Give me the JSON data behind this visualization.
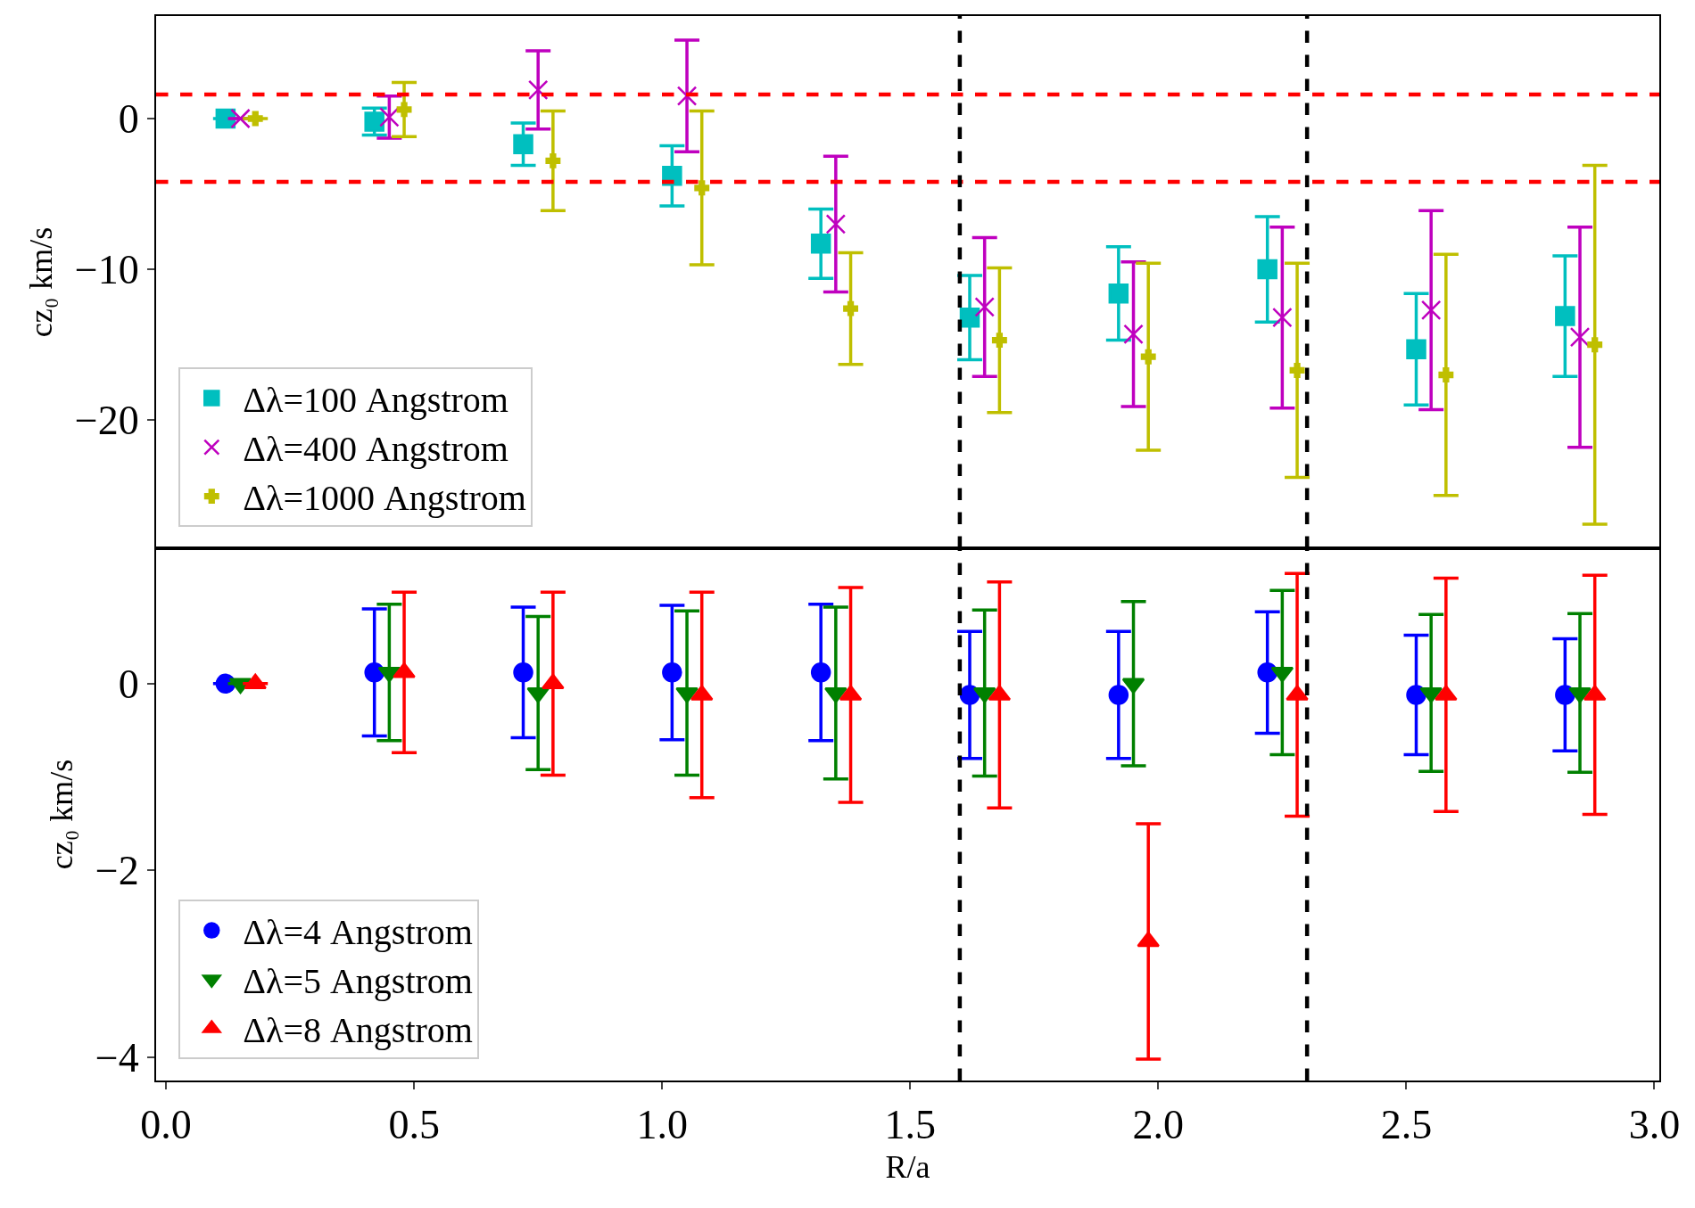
{
  "chart_data": [
    {
      "type": "scatter",
      "ylabel": "cz₀ km/s",
      "xlim": [
        -0.02,
        3.01
      ],
      "ylim": [
        -28.5,
        6.8
      ],
      "yticks": [
        0,
        {
          "value": -10,
          "label": "−10"
        },
        {
          "value": -20,
          "label": "−20"
        }
      ],
      "tick_labels": "y",
      "legend": "bottom left",
      "grid": false,
      "series": [
        {
          "name": "Δλ=100 Angstrom",
          "color": "#00bfbf",
          "marker": "square",
          "x": [
            0.12,
            0.42,
            0.72,
            1.02,
            1.32,
            1.62,
            1.92,
            2.22,
            2.52,
            2.82
          ],
          "values": [
            0,
            -0.2,
            -1.7,
            -3.8,
            -8.3,
            -13.2,
            -11.6,
            -10.0,
            -15.3,
            -13.1
          ],
          "errors": [
            0,
            0.9,
            1.4,
            2.0,
            2.3,
            2.8,
            3.1,
            3.5,
            3.7,
            4.0
          ]
        },
        {
          "name": "Δλ=400 Angstrom",
          "color": "#bf00bf",
          "marker": "x",
          "x": [
            0.15,
            0.45,
            0.75,
            1.05,
            1.35,
            1.65,
            1.95,
            2.25,
            2.55,
            2.85
          ],
          "values": [
            0,
            0.1,
            1.9,
            1.5,
            -7.0,
            -12.5,
            -14.3,
            -13.2,
            -12.7,
            -14.5
          ],
          "errors": [
            0,
            1.4,
            2.6,
            3.7,
            4.5,
            4.6,
            4.8,
            6.0,
            6.6,
            7.3
          ]
        },
        {
          "name": "Δλ=1000 Angstrom",
          "color": "#bfbf00",
          "marker": "cross",
          "x": [
            0.18,
            0.48,
            0.78,
            1.08,
            1.38,
            1.68,
            1.98,
            2.28,
            2.58,
            2.88
          ],
          "values": [
            0,
            0.6,
            -2.8,
            -4.6,
            -12.6,
            -14.7,
            -15.8,
            -16.7,
            -17.0,
            -15.0
          ],
          "errors": [
            0,
            1.8,
            3.3,
            5.1,
            3.7,
            4.8,
            6.2,
            7.1,
            8.0,
            11.9
          ]
        }
      ],
      "ref_lines": [
        {
          "axis": "y",
          "value": 1.6,
          "color": "#ff0000",
          "line_style": "dashed"
        },
        {
          "axis": "y",
          "value": -4.2,
          "color": "#ff0000",
          "line_style": "dashed"
        },
        {
          "axis": "x",
          "value": 1.6,
          "color": "#000000",
          "line_style": "dashed"
        },
        {
          "axis": "x",
          "value": 2.3,
          "color": "#000000",
          "line_style": "dashed"
        }
      ]
    },
    {
      "type": "scatter",
      "xlabel": "R/a",
      "ylabel": "cz₀ km/s",
      "xlim": [
        -0.02,
        3.01
      ],
      "ylim": [
        -4.25,
        1.45
      ],
      "xticks": [
        {
          "value": 0,
          "label": "0.0"
        },
        {
          "value": 0.5,
          "label": "0.5"
        },
        {
          "value": 1,
          "label": "1.0"
        },
        {
          "value": 1.5,
          "label": "1.5"
        },
        {
          "value": 2,
          "label": "2.0"
        },
        {
          "value": 2.5,
          "label": "2.5"
        },
        {
          "value": 3,
          "label": "3.0"
        }
      ],
      "yticks": [
        0,
        {
          "value": -2,
          "label": "−2"
        },
        {
          "value": -4,
          "label": "−4"
        }
      ],
      "legend": "bottom left",
      "grid": false,
      "series": [
        {
          "name": "Δλ=4 Angstrom",
          "color": "#0000ff",
          "marker": "circle",
          "x": [
            0.12,
            0.42,
            0.72,
            1.02,
            1.32,
            1.62,
            1.92,
            2.22,
            2.52,
            2.82
          ],
          "values": [
            0,
            0.12,
            0.12,
            0.12,
            0.12,
            -0.12,
            -0.12,
            0.12,
            -0.12,
            -0.12
          ],
          "errors": [
            0,
            0.68,
            0.7,
            0.72,
            0.73,
            0.68,
            0.68,
            0.65,
            0.64,
            0.6
          ]
        },
        {
          "name": "Δλ=5 Angstrom",
          "color": "#008000",
          "marker": "triangle-down",
          "x": [
            0.15,
            0.45,
            0.75,
            1.05,
            1.35,
            1.65,
            1.95,
            2.25,
            2.55,
            2.85
          ],
          "values": [
            0,
            0.12,
            -0.1,
            -0.1,
            -0.1,
            -0.1,
            0,
            0.12,
            -0.1,
            -0.1
          ],
          "errors": [
            0,
            0.73,
            0.82,
            0.88,
            0.92,
            0.89,
            0.88,
            0.88,
            0.84,
            0.85
          ]
        },
        {
          "name": "Δλ=8 Angstrom",
          "color": "#ff0000",
          "marker": "triangle",
          "x": [
            0.18,
            0.48,
            0.78,
            1.08,
            1.38,
            1.68,
            1.98,
            2.28,
            2.58,
            2.88
          ],
          "values": [
            0,
            0.12,
            0,
            -0.12,
            -0.12,
            -0.12,
            -2.76,
            -0.12,
            -0.12,
            -0.12
          ],
          "errors": [
            0,
            0.86,
            0.98,
            1.1,
            1.15,
            1.21,
            1.26,
            1.3,
            1.25,
            1.28
          ]
        }
      ],
      "ref_lines": [
        {
          "axis": "x",
          "value": 1.6,
          "color": "#000000",
          "line_style": "dashed"
        },
        {
          "axis": "x",
          "value": 2.3,
          "color": "#000000",
          "line_style": "dashed"
        }
      ]
    }
  ]
}
